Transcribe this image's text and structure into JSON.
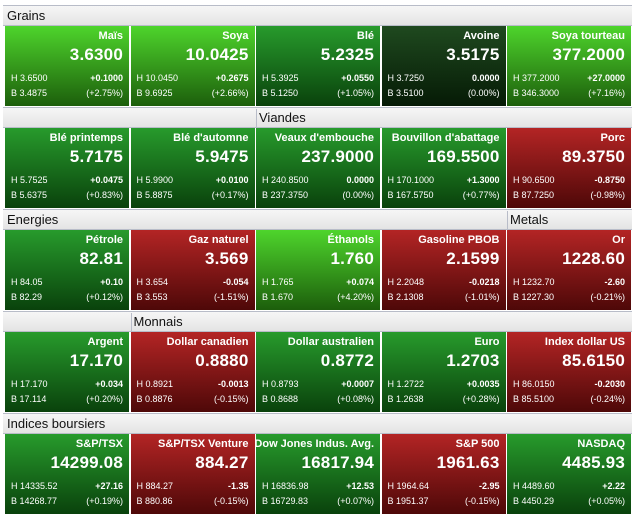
{
  "rows": [
    {
      "headers": [
        "Grains"
      ],
      "tiles": [
        {
          "name": "Maïs",
          "price": "3.6300",
          "high": "H 3.6500",
          "change": "+0.1000",
          "low": "B 3.4875",
          "pct": "(+2.75%)",
          "color": "#3fd11a"
        },
        {
          "name": "Soya",
          "price": "10.0425",
          "high": "H 10.0450",
          "change": "+0.2675",
          "low": "B 9.6925",
          "pct": "(+2.66%)",
          "color": "#3fd11a"
        },
        {
          "name": "Blé",
          "price": "5.2325",
          "high": "H 5.3925",
          "change": "+0.0550",
          "low": "B 5.1250",
          "pct": "(+1.05%)",
          "color": "#15921a"
        },
        {
          "name": "Avoine",
          "price": "3.5175",
          "high": "H 3.7250",
          "change": "0.0000",
          "low": "B 3.5100",
          "pct": "(0.00%)",
          "color": "#0c3a0c"
        },
        {
          "name": "Soya tourteau",
          "price": "377.2000",
          "high": "H 377.2000",
          "change": "+27.0000",
          "low": "B 346.3000",
          "pct": "(+7.16%)",
          "color": "#3fd11a"
        }
      ]
    },
    {
      "headers": [
        "Viandes"
      ],
      "tiles": [
        {
          "name": "Blé printemps",
          "price": "5.7175",
          "high": "H 5.7525",
          "change": "+0.0475",
          "low": "B 5.6375",
          "pct": "(+0.83%)",
          "color": "#15921a"
        },
        {
          "name": "Blé d'automne",
          "price": "5.9475",
          "high": "H 5.9900",
          "change": "+0.0100",
          "low": "B 5.8875",
          "pct": "(+0.17%)",
          "color": "#15921a"
        },
        {
          "name": "Veaux d'embouche",
          "price": "237.9000",
          "high": "H 240.8500",
          "change": "0.0000",
          "low": "B 237.3750",
          "pct": "(0.00%)",
          "color": "#15921a"
        },
        {
          "name": "Bouvillon d'abattage",
          "price": "169.5500",
          "high": "H 170.1000",
          "change": "+1.3000",
          "low": "B 167.5750",
          "pct": "(+0.77%)",
          "color": "#15921a"
        },
        {
          "name": "Porc",
          "price": "89.3750",
          "high": "H 90.6500",
          "change": "-0.8750",
          "low": "B 87.7250",
          "pct": "(-0.98%)",
          "color": "#ad1212"
        }
      ]
    },
    {
      "headers": [
        "Energies",
        "Metals"
      ],
      "tiles": [
        {
          "name": "Pétrole",
          "price": "82.81",
          "high": "H 84.05",
          "change": "+0.10",
          "low": "B 82.29",
          "pct": "(+0.12%)",
          "color": "#15921a"
        },
        {
          "name": "Gaz naturel",
          "price": "3.569",
          "high": "H 3.654",
          "change": "-0.054",
          "low": "B 3.553",
          "pct": "(-1.51%)",
          "color": "#ad1212"
        },
        {
          "name": "Éthanols",
          "price": "1.760",
          "high": "H 1.765",
          "change": "+0.074",
          "low": "B 1.670",
          "pct": "(+4.20%)",
          "color": "#3fd11a"
        },
        {
          "name": "Gasoline PBOB",
          "price": "2.1599",
          "high": "H 2.2048",
          "change": "-0.0218",
          "low": "B 2.1308",
          "pct": "(-1.01%)",
          "color": "#ad1212"
        },
        {
          "name": "Or",
          "price": "1228.60",
          "high": "H 1232.70",
          "change": "-2.60",
          "low": "B 1227.30",
          "pct": "(-0.21%)",
          "color": "#ad1212"
        }
      ]
    },
    {
      "headers": [
        "Monnais"
      ],
      "tiles": [
        {
          "name": "Argent",
          "price": "17.170",
          "high": "H 17.170",
          "change": "+0.034",
          "low": "B 17.114",
          "pct": "(+0.20%)",
          "color": "#15921a"
        },
        {
          "name": "Dollar canadien",
          "price": "0.8880",
          "high": "H 0.8921",
          "change": "-0.0013",
          "low": "B 0.8876",
          "pct": "(-0.15%)",
          "color": "#ad1212"
        },
        {
          "name": "Dollar australien",
          "price": "0.8772",
          "high": "H 0.8793",
          "change": "+0.0007",
          "low": "B 0.8688",
          "pct": "(+0.08%)",
          "color": "#15921a"
        },
        {
          "name": "Euro",
          "price": "1.2703",
          "high": "H 1.2722",
          "change": "+0.0035",
          "low": "B 1.2638",
          "pct": "(+0.28%)",
          "color": "#15921a"
        },
        {
          "name": "Index dollar US",
          "price": "85.6150",
          "high": "H 86.0150",
          "change": "-0.2030",
          "low": "B 85.5100",
          "pct": "(-0.24%)",
          "color": "#ad1212"
        }
      ]
    },
    {
      "headers": [
        "Indices boursiers"
      ],
      "tiles": [
        {
          "name": "S&P/TSX",
          "price": "14299.08",
          "high": "H 14335.52",
          "change": "+27.16",
          "low": "B 14268.77",
          "pct": "(+0.19%)",
          "color": "#15921a"
        },
        {
          "name": "S&P/TSX Venture",
          "price": "884.27",
          "high": "H 884.27",
          "change": "-1.35",
          "low": "B 880.86",
          "pct": "(-0.15%)",
          "color": "#ad1212"
        },
        {
          "name": "Dow Jones Indus. Avg.",
          "price": "16817.94",
          "high": "H 16836.98",
          "change": "+12.53",
          "low": "B 16729.83",
          "pct": "(+0.07%)",
          "color": "#15921a"
        },
        {
          "name": "S&P 500",
          "price": "1961.63",
          "high": "H 1964.64",
          "change": "-2.95",
          "low": "B 1951.37",
          "pct": "(-0.15%)",
          "color": "#ad1212"
        },
        {
          "name": "NASDAQ",
          "price": "4485.93",
          "high": "H 4489.60",
          "change": "+2.22",
          "low": "B 4450.29",
          "pct": "(+0.05%)",
          "color": "#15921a"
        }
      ]
    }
  ]
}
